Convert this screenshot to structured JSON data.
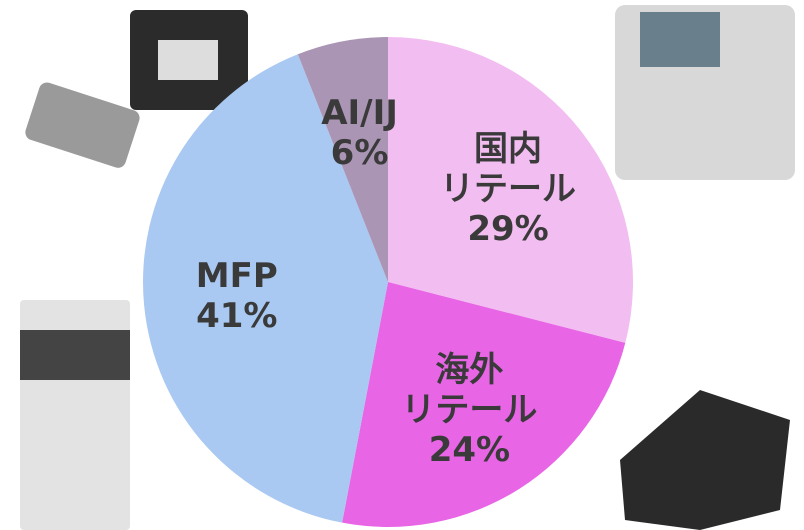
{
  "chart_data": {
    "type": "pie",
    "categories": [
      "国内\nリテール",
      "海外\nリテール",
      "MFP",
      "AI/IJ"
    ],
    "values": [
      29,
      24,
      41,
      6
    ],
    "value_labels": [
      "29%",
      "24%",
      "41%",
      "6%"
    ],
    "colors": [
      "#f2bdf0",
      "#e865e6",
      "#a9c9f2",
      "#ab95b4"
    ]
  }
}
